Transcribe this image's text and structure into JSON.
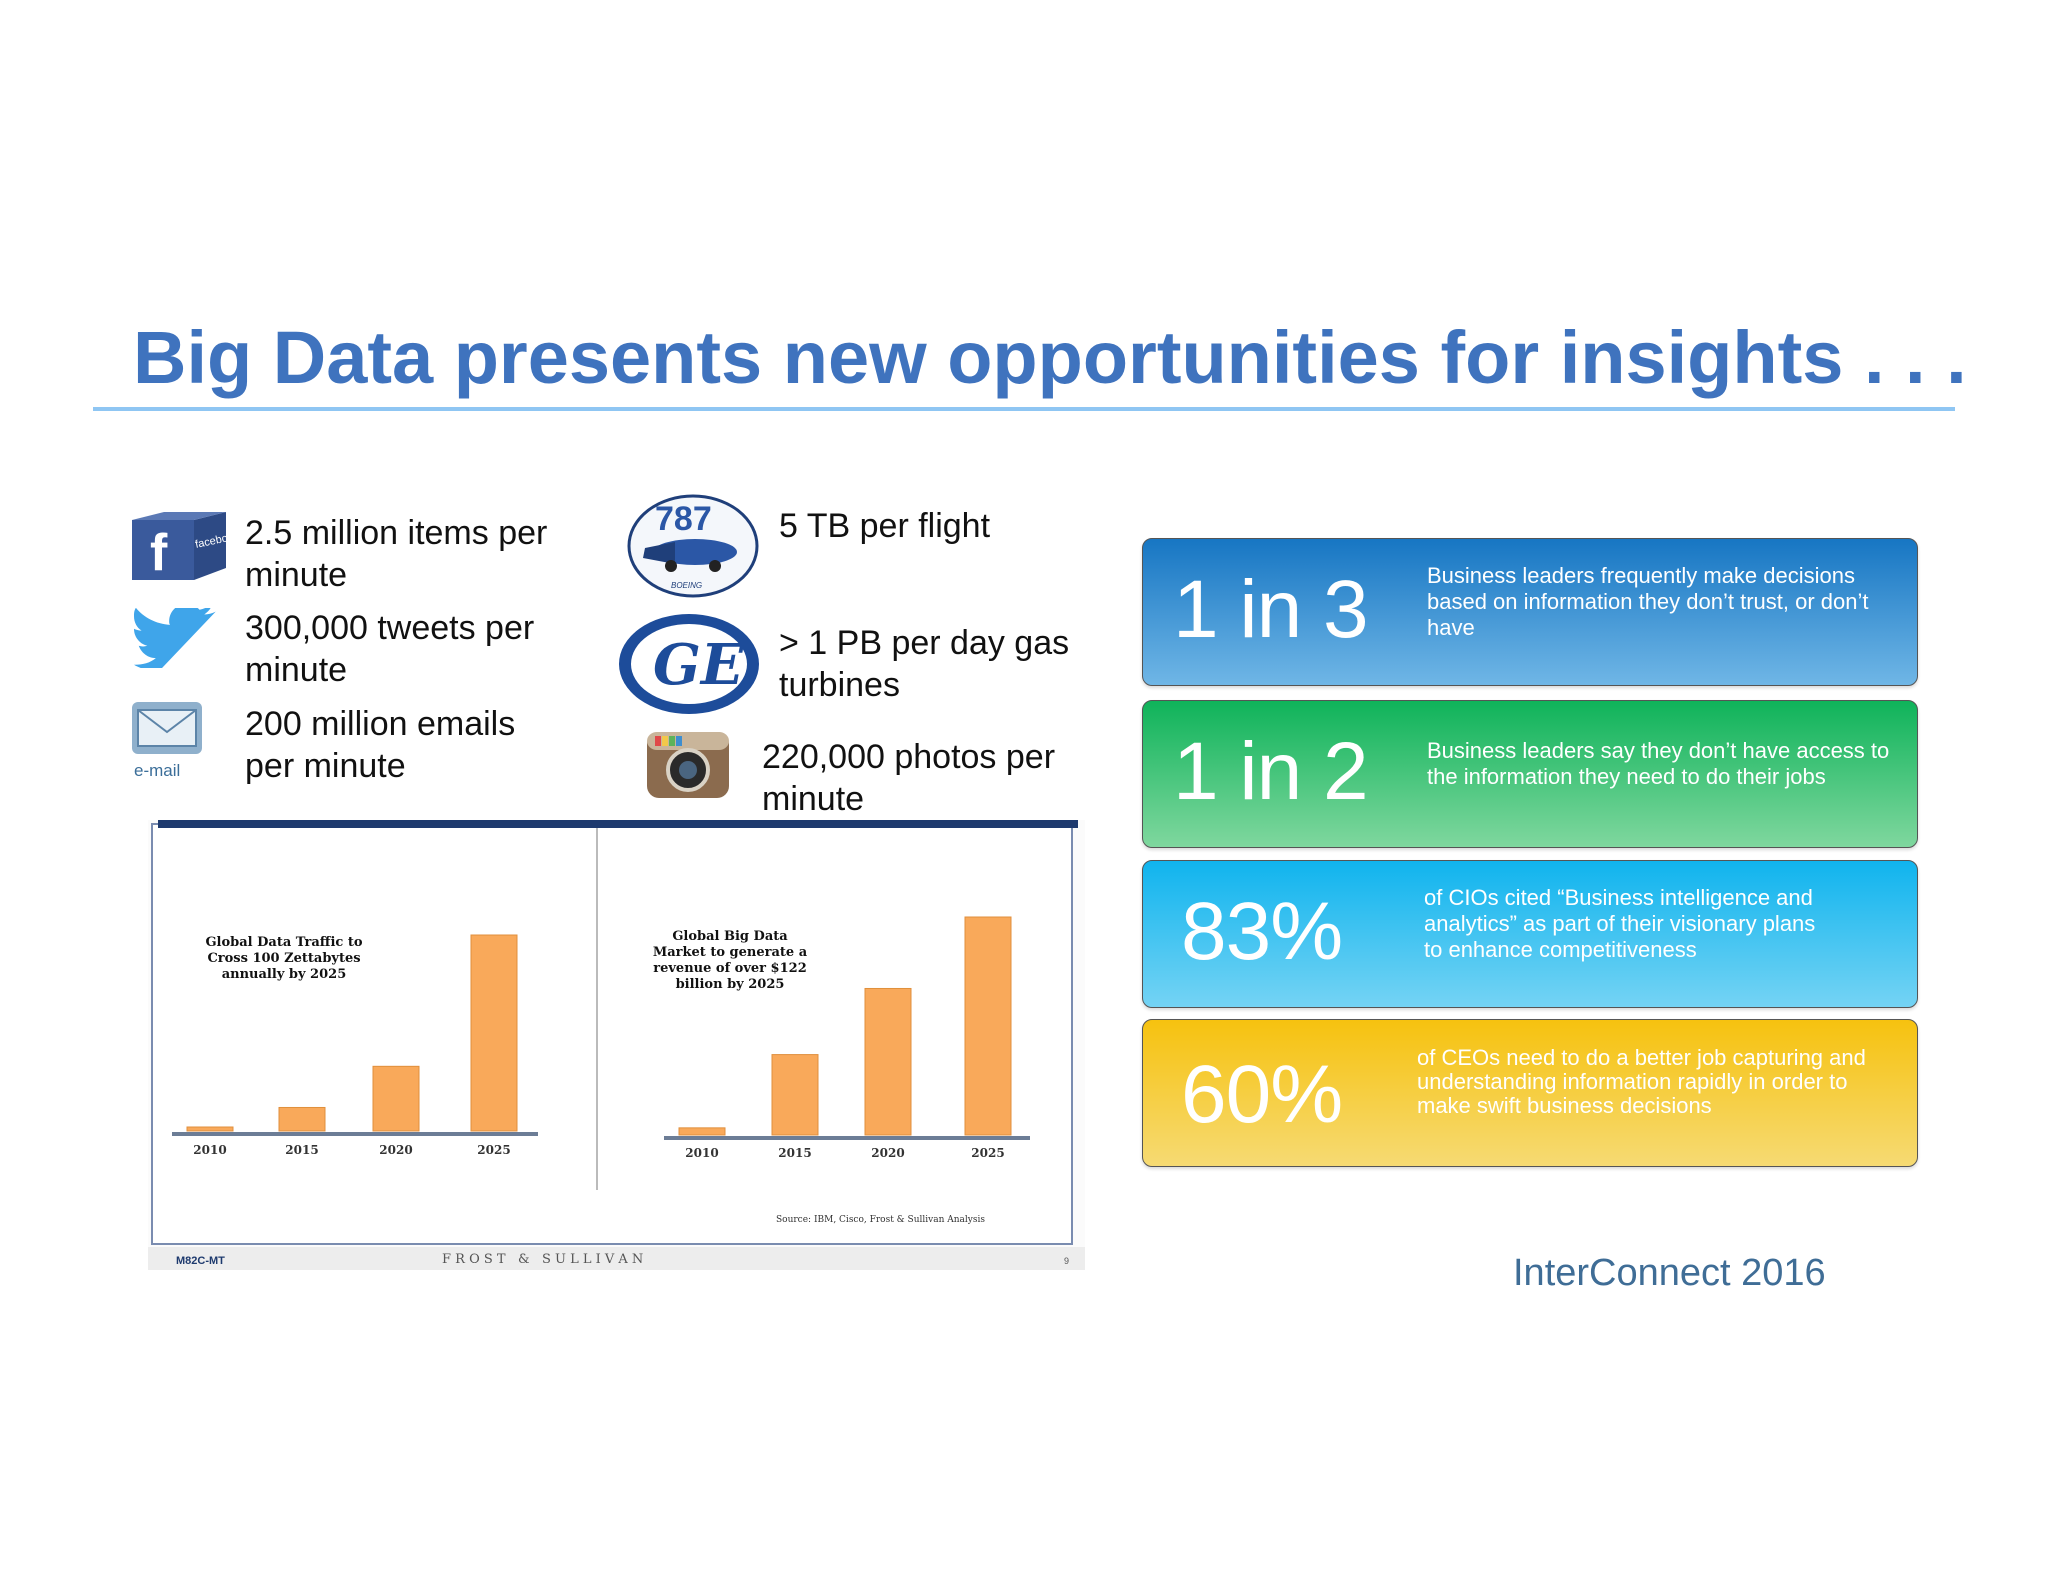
{
  "title": "Big Data presents new opportunities for insights . . .",
  "stats_left": [
    {
      "icon": "facebook-icon",
      "icon_label": "facebook",
      "line1": "2.5 million items per",
      "line2": "minute"
    },
    {
      "icon": "twitter-icon",
      "icon_label": "",
      "line1": "300,000 tweets  per",
      "line2": "minute"
    },
    {
      "icon": "email-icon",
      "icon_label": "e-mail",
      "line1": "200 million emails",
      "line2": "per minute"
    }
  ],
  "stats_right": [
    {
      "icon": "boeing-787-icon",
      "icon_label": "787",
      "sub_label": "BOEING",
      "line1": "5 TB per flight",
      "line2": ""
    },
    {
      "icon": "ge-logo-icon",
      "icon_label": "GE",
      "line1": " > 1 PB per day gas",
      "line2": "turbines"
    },
    {
      "icon": "instagram-icon",
      "icon_label": "",
      "line1": "220,000 photos  per",
      "line2": "minute"
    }
  ],
  "chart_data": [
    {
      "type": "bar",
      "title": "Global Data Traffic to Cross 100 Zettabytes annually by 2025",
      "categories": [
        "2010",
        "2015",
        "2020",
        "2025"
      ],
      "values": [
        2,
        12,
        33,
        100
      ],
      "ylim": [
        0,
        105
      ],
      "color": "#F9A95A",
      "xlabel": "",
      "ylabel": ""
    },
    {
      "type": "bar",
      "title": "Global Big Data Market to generate a revenue of over $122 billion by 2025",
      "categories": [
        "2010",
        "2015",
        "2020",
        "2025"
      ],
      "values": [
        4,
        45,
        82,
        122
      ],
      "ylim": [
        0,
        128
      ],
      "color": "#F9A95A",
      "xlabel": "",
      "ylabel": ""
    }
  ],
  "chart_source": "Source: IBM, Cisco, Frost & Sullivan Analysis",
  "chart_footer": {
    "code": "M82C-MT",
    "brand": "F R O S T   &   S U L L I V A N",
    "page": "9"
  },
  "cards": [
    {
      "big": "1 in 3",
      "desc": "Business leaders frequently make decisions\nbased on information they don’t trust, or don’t\nhave",
      "gradient_top": "#1776C3",
      "gradient_bottom": "#6FB6E6"
    },
    {
      "big": "1 in 2",
      "desc": "Business leaders say they don’t have access to\nthe information they need to do their jobs",
      "gradient_top": "#0FB35A",
      "gradient_bottom": "#7FD79E"
    },
    {
      "big": "83%",
      "desc": "of CIOs cited “Business intelligence and\nanalytics” as part of their visionary plans\nto enhance competitiveness",
      "gradient_top": "#10B4EE",
      "gradient_bottom": "#74D3F4"
    },
    {
      "big": "60%",
      "desc": "of CEOs need to do a better job capturing and\nunderstanding information rapidly in order to\nmake swift business decisions",
      "gradient_top": "#F6C20F",
      "gradient_bottom": "#F6DA73"
    }
  ],
  "footer_brand": "InterConnect 2016"
}
